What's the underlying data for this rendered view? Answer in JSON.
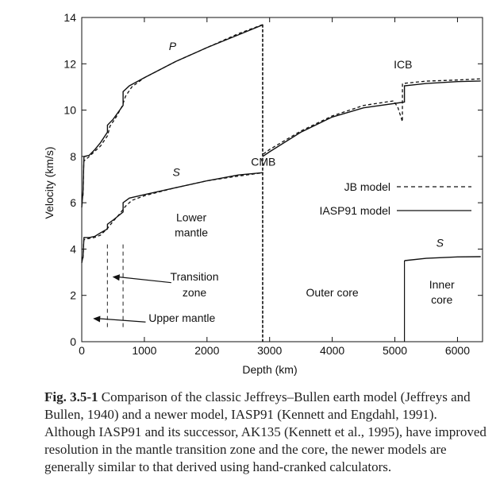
{
  "chart_data": {
    "type": "line",
    "xlabel": "Depth (km)",
    "ylabel": "Velocity (km/s)",
    "xlim": [
      0,
      6400
    ],
    "ylim": [
      0,
      14
    ],
    "xticks": [
      0,
      1000,
      2000,
      3000,
      4000,
      5000,
      6000
    ],
    "yticks": [
      0,
      2,
      4,
      6,
      8,
      10,
      12,
      14
    ],
    "grid": false,
    "legend_position": "right-middle",
    "series": [
      {
        "name": "JB model",
        "style": "dashed",
        "curves": [
          [
            [
              20,
              6.3
            ],
            [
              33,
              7.8
            ],
            [
              100,
              7.95
            ],
            [
              200,
              8.2
            ],
            [
              300,
              8.45
            ],
            [
              413,
              8.9
            ],
            [
              450,
              9.3
            ],
            [
              550,
              9.7
            ],
            [
              650,
              10.2
            ],
            [
              700,
              10.6
            ],
            [
              800,
              11.0
            ],
            [
              1000,
              11.4
            ],
            [
              1500,
              12.1
            ],
            [
              2000,
              12.7
            ],
            [
              2500,
              13.3
            ],
            [
              2898,
              13.7
            ]
          ],
          [
            [
              2898,
              8.1
            ],
            [
              3000,
              8.3
            ],
            [
              3500,
              9.1
            ],
            [
              4000,
              9.75
            ],
            [
              4500,
              10.2
            ],
            [
              4982,
              10.4
            ],
            [
              5050,
              10.1
            ],
            [
              5120,
              9.5
            ],
            [
              5121,
              11.15
            ],
            [
              5500,
              11.25
            ],
            [
              6000,
              11.3
            ],
            [
              6371,
              11.35
            ]
          ],
          [
            [
              20,
              3.6
            ],
            [
              33,
              4.4
            ],
            [
              100,
              4.45
            ],
            [
              200,
              4.5
            ],
            [
              300,
              4.6
            ],
            [
              413,
              4.9
            ],
            [
              500,
              5.2
            ],
            [
              600,
              5.5
            ],
            [
              700,
              5.85
            ],
            [
              800,
              6.1
            ],
            [
              1000,
              6.3
            ],
            [
              1500,
              6.65
            ],
            [
              2000,
              6.95
            ],
            [
              2500,
              7.15
            ],
            [
              2898,
              7.3
            ]
          ]
        ]
      },
      {
        "name": "IASP91 model",
        "style": "solid",
        "curves": [
          [
            [
              0,
              5.8
            ],
            [
              20,
              6.5
            ],
            [
              35,
              8.0
            ],
            [
              120,
              8.05
            ],
            [
              210,
              8.3
            ],
            [
              300,
              8.6
            ],
            [
              410,
              9.05
            ],
            [
              410,
              9.35
            ],
            [
              500,
              9.6
            ],
            [
              660,
              10.2
            ],
            [
              660,
              10.8
            ],
            [
              760,
              11.05
            ],
            [
              1000,
              11.4
            ],
            [
              1500,
              12.1
            ],
            [
              2000,
              12.7
            ],
            [
              2500,
              13.25
            ],
            [
              2889,
              13.68
            ]
          ],
          [
            [
              2889,
              8.0
            ],
            [
              3000,
              8.2
            ],
            [
              3500,
              9.05
            ],
            [
              4000,
              9.7
            ],
            [
              4500,
              10.1
            ],
            [
              5153,
              10.35
            ],
            [
              5153,
              11.05
            ],
            [
              5500,
              11.15
            ],
            [
              6000,
              11.23
            ],
            [
              6371,
              11.26
            ]
          ],
          [
            [
              0,
              3.4
            ],
            [
              20,
              3.7
            ],
            [
              35,
              4.5
            ],
            [
              120,
              4.5
            ],
            [
              210,
              4.55
            ],
            [
              300,
              4.7
            ],
            [
              410,
              4.87
            ],
            [
              410,
              5.07
            ],
            [
              500,
              5.25
            ],
            [
              660,
              5.6
            ],
            [
              660,
              6.0
            ],
            [
              760,
              6.2
            ],
            [
              1000,
              6.35
            ],
            [
              1500,
              6.65
            ],
            [
              2000,
              6.95
            ],
            [
              2500,
              7.2
            ],
            [
              2889,
              7.3
            ]
          ],
          [
            [
              5153,
              3.5
            ],
            [
              5500,
              3.6
            ],
            [
              6000,
              3.66
            ],
            [
              6371,
              3.67
            ]
          ]
        ]
      }
    ],
    "boundaries": [
      {
        "x": 2889,
        "style": "vertical-dashed"
      },
      {
        "x": 410,
        "style": "vertical-dashed-light"
      },
      {
        "x": 660,
        "style": "vertical-dashed-light"
      }
    ],
    "annotations": [
      {
        "text": "P",
        "x": 1450,
        "y": 12.6,
        "italic": true
      },
      {
        "text": "S",
        "x": 1510,
        "y": 7.15,
        "italic": true
      },
      {
        "text": "S",
        "x": 5720,
        "y": 4.1,
        "italic": true
      },
      {
        "text": "CMB",
        "x": 2900,
        "y": 7.6
      },
      {
        "text": "ICB",
        "x": 5130,
        "y": 11.8
      },
      {
        "text": "Lower",
        "x": 1750,
        "y": 5.2
      },
      {
        "text": "mantle",
        "x": 1750,
        "y": 4.55
      },
      {
        "text": "Transition",
        "x": 1800,
        "y": 2.65
      },
      {
        "text": "zone",
        "x": 1800,
        "y": 1.95
      },
      {
        "text": "Upper mantle",
        "x": 1600,
        "y": 0.85
      },
      {
        "text": "Outer core",
        "x": 4000,
        "y": 1.95
      },
      {
        "text": "Inner",
        "x": 5750,
        "y": 2.3
      },
      {
        "text": "core",
        "x": 5750,
        "y": 1.65
      }
    ],
    "arrows": [
      {
        "from": [
          1430,
          2.55
        ],
        "to": [
          490,
          2.8
        ]
      },
      {
        "from": [
          1020,
          0.85
        ],
        "to": [
          180,
          1.0
        ]
      }
    ]
  },
  "caption": {
    "fig_label": "Fig. 3.5-1",
    "text": "Comparison of the classic Jeffreys–Bullen earth model (Jeffreys and Bullen, 1940) and a newer model, IASP91 (Kennett and Engdahl, 1991). Although IASP91 and its successor, AK135 (Kennett et al., 1995), have improved resolution in the mantle transition zone and the core, the newer models are generally similar to that derived using hand-cranked calculators."
  }
}
